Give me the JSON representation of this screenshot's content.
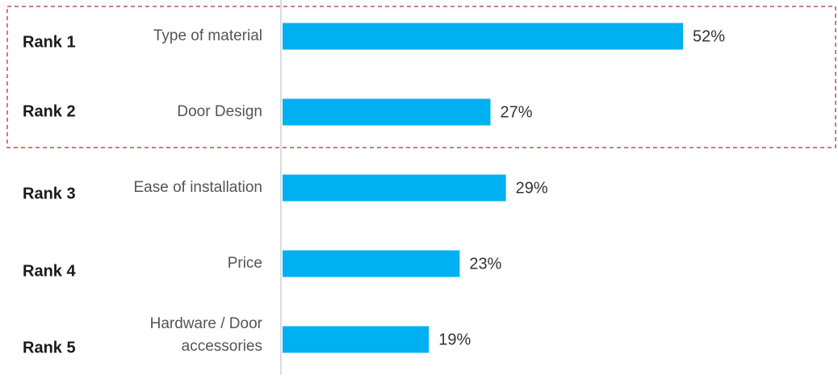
{
  "chart_data": {
    "type": "bar",
    "orientation": "horizontal",
    "categories": [
      "Type of material",
      "Door Design",
      "Ease of installation",
      "Price",
      "Hardware / Door accessories"
    ],
    "category_lines": [
      [
        "Type of material"
      ],
      [
        "Door Design"
      ],
      [
        "Ease of installation"
      ],
      [
        "Price"
      ],
      [
        "Hardware / Door",
        "accessories"
      ]
    ],
    "ranks": [
      "Rank 1",
      "Rank 2",
      "Rank 3",
      "Rank 4",
      "Rank 5"
    ],
    "values": [
      52,
      27,
      29,
      23,
      19
    ],
    "value_labels": [
      "52%",
      "27%",
      "29%",
      "23%",
      "19%"
    ],
    "xlim": [
      0,
      60
    ],
    "grid": false,
    "highlight": {
      "ranks": [
        "Rank 1",
        "Rank 2"
      ],
      "style": "dashed-box"
    },
    "colors": {
      "bar": "#00b0f0",
      "highlight_border": "#c0504d",
      "axis": "#d0d0d0"
    }
  }
}
